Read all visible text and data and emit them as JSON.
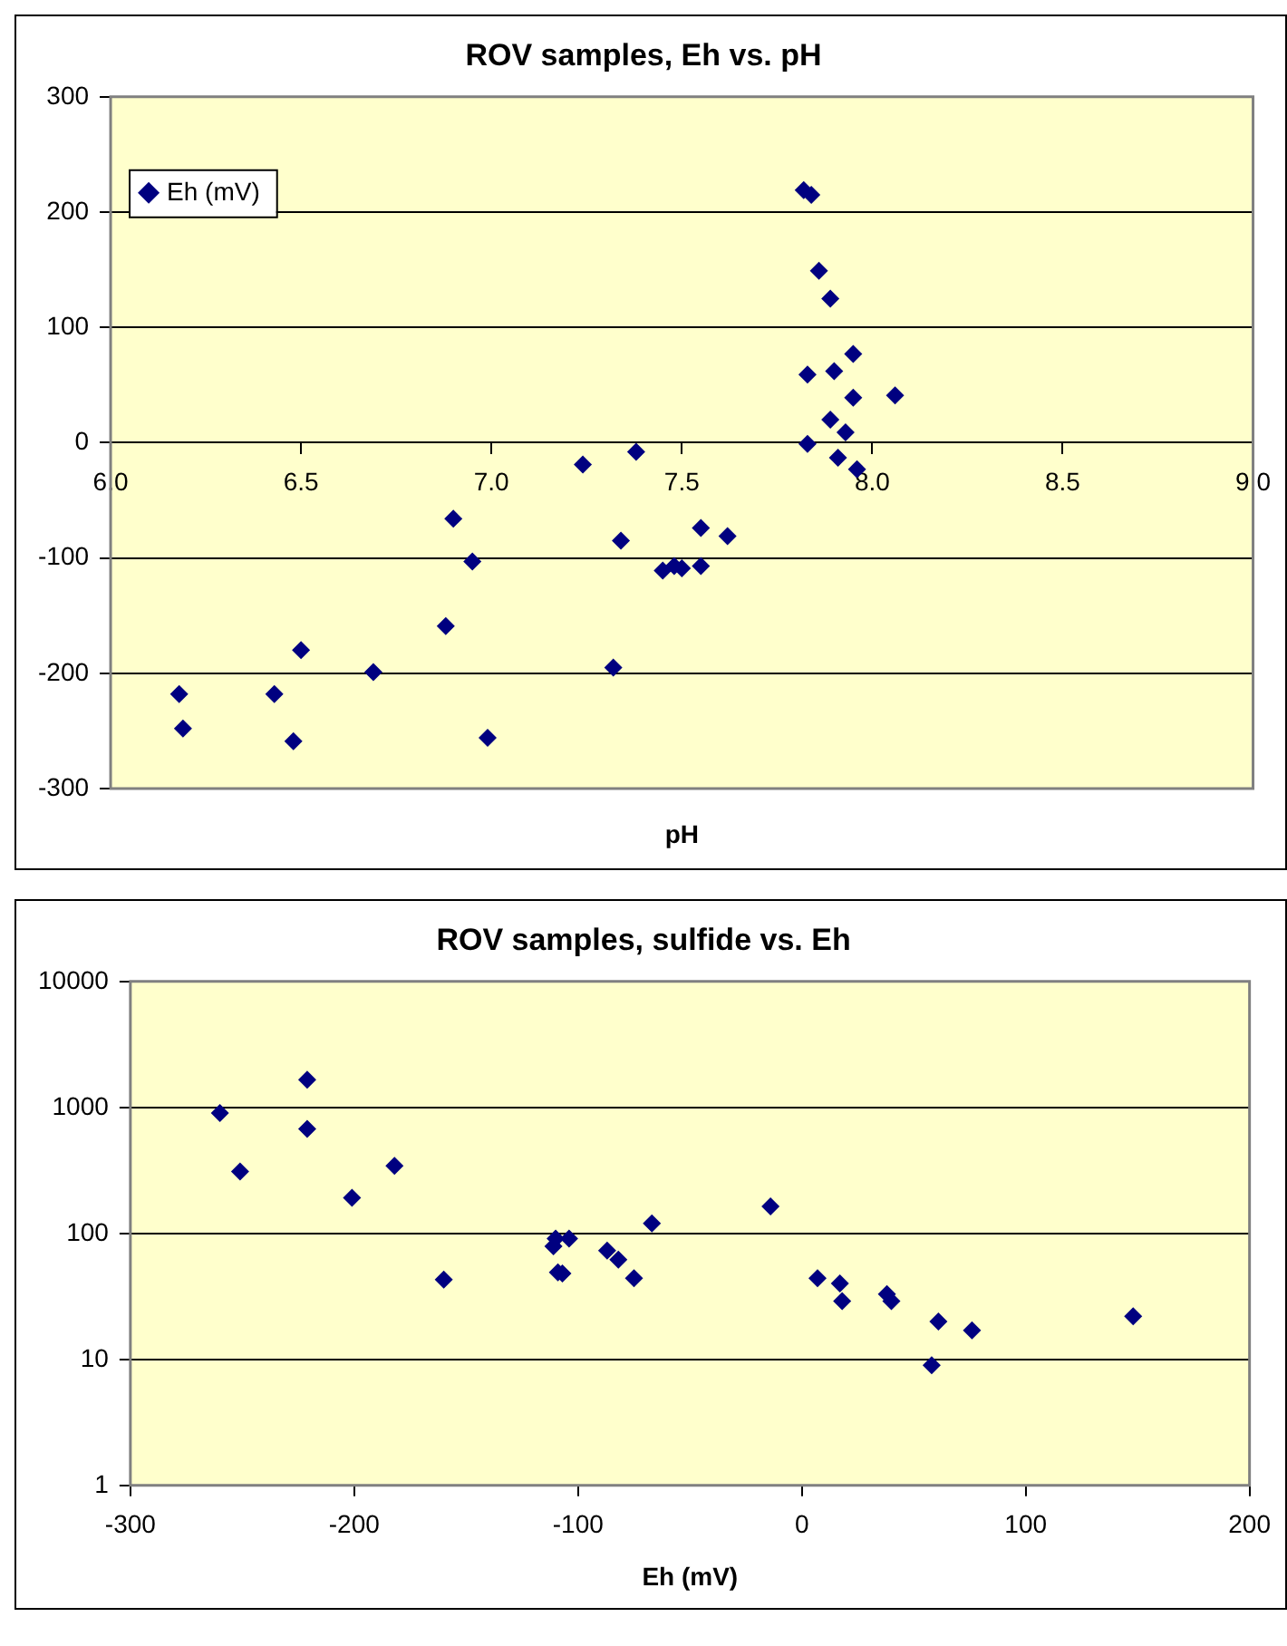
{
  "chart_data": [
    {
      "type": "scatter",
      "title": "ROV samples, Eh vs. pH",
      "xlabel": "pH",
      "xlim": [
        6,
        9
      ],
      "ylim": [
        -300,
        300
      ],
      "xticks": [
        {
          "value": 6,
          "label": "6.0"
        },
        6.5,
        {
          "value": 7,
          "label": "7.0"
        },
        7.5,
        {
          "value": 8,
          "label": "8.0"
        },
        8.5,
        {
          "value": 9,
          "label": "9.0"
        }
      ],
      "yticks": [
        -300,
        -200,
        -100,
        0,
        100,
        200,
        300
      ],
      "grid": "y",
      "legend": "top left",
      "marker": "diamond",
      "series": [
        {
          "name": "Eh (mV)",
          "color": "#000080",
          "x": [
            6.18,
            6.19,
            6.43,
            6.48,
            6.5,
            6.69,
            6.88,
            6.9,
            6.95,
            6.99,
            7.24,
            7.32,
            7.34,
            7.38,
            7.45,
            7.48,
            7.5,
            7.55,
            7.55,
            7.62,
            7.82,
            7.84,
            7.86,
            7.89,
            7.83,
            7.9,
            7.95,
            7.95,
            8.06,
            7.89,
            7.93,
            7.83,
            7.91,
            7.96
          ],
          "values": [
            -218,
            -248,
            -218,
            -259,
            -180,
            -199,
            -159,
            -66,
            -103,
            -256,
            -19,
            -195,
            -85,
            -8,
            -111,
            -107,
            -109,
            -107,
            -74,
            -81,
            219,
            215,
            149,
            125,
            59,
            62,
            77,
            39,
            41,
            20,
            9,
            -1,
            -13,
            -23
          ]
        }
      ]
    },
    {
      "type": "scatter",
      "title": "ROV samples, sulfide vs. Eh",
      "xlabel": "Eh (mV)",
      "xlim": [
        -300,
        200
      ],
      "ylim": [
        1,
        10000
      ],
      "xticks": [
        -300,
        -200,
        -100,
        0,
        100,
        200
      ],
      "yticks": [
        1,
        10,
        100,
        1000,
        10000
      ],
      "log": "y",
      "grid": "y",
      "marker": "diamond",
      "series": [
        {
          "color": "#000080",
          "x": [
            -260,
            -251,
            -221,
            -221,
            -201,
            -182,
            -160,
            -111,
            -110,
            -104,
            -109,
            -107,
            -87,
            -82,
            -75,
            -67,
            -14,
            7,
            17,
            18,
            38,
            40,
            58,
            61,
            76,
            148
          ],
          "values": [
            904,
            310,
            1660,
            676,
            192,
            344,
            43,
            79,
            91,
            91,
            49,
            48,
            73,
            62,
            44,
            120,
            164,
            44,
            40,
            29,
            33,
            29,
            9,
            20,
            17,
            22
          ]
        }
      ]
    }
  ]
}
